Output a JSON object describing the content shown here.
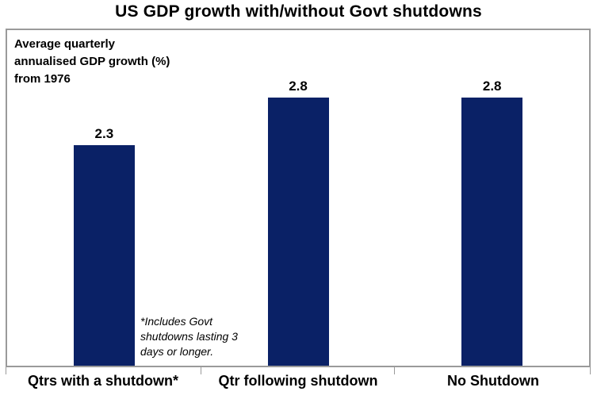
{
  "title": "US GDP growth with/without Govt shutdowns",
  "annotation": {
    "text": "Average quarterly\nannualised GDP growth (%)\nfrom 1976"
  },
  "footnote": {
    "text": "*Includes Govt shutdowns lasting 3 days or longer."
  },
  "colors": {
    "bar": "#0a2166",
    "plot_border": "#9a9a9a",
    "text": "#000000",
    "background": "#ffffff"
  },
  "chart_data": {
    "type": "bar",
    "title": "US GDP growth with/without Govt shutdowns",
    "categories": [
      "Qtrs with a shutdown*",
      "Qtr following shutdown",
      "No Shutdown"
    ],
    "values": [
      2.3,
      2.8,
      2.8
    ],
    "value_labels": [
      "2.3",
      "2.8",
      "2.8"
    ],
    "xlabel": "",
    "ylabel": "Average quarterly annualised GDP growth (%) from 1976",
    "ylim": [
      0,
      3.5
    ],
    "grid": false,
    "legend_position": "none",
    "annotation": "Average quarterly annualised GDP growth (%) from 1976",
    "footnote": "*Includes Govt shutdowns lasting 3 days or longer."
  }
}
